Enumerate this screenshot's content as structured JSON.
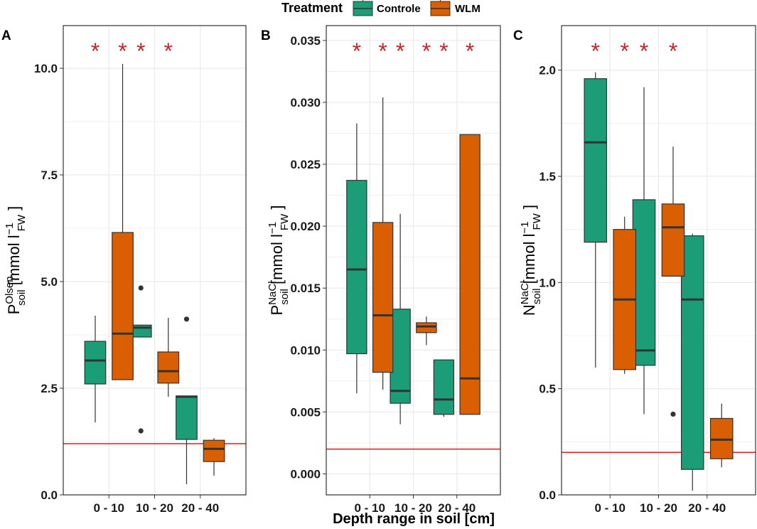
{
  "legend": {
    "title": "Treatment",
    "items": [
      {
        "label": "Controle",
        "color": "#1b9e77"
      },
      {
        "label": "WLM",
        "color": "#d95f02"
      }
    ]
  },
  "x_axis_title": "Depth range in soil [cm]",
  "colors": {
    "controle": "#1b9e77",
    "wlm": "#d95f02",
    "reference_line": "#e31a1c",
    "star": "#c0282a",
    "grid": "#ebebeb",
    "box_stroke": "#333333"
  },
  "chart_data": [
    {
      "type": "box",
      "panel": "A",
      "ylabel": {
        "main": "P",
        "sup": "Olsen",
        "sub": "soil",
        "unit_open": " [mmol l",
        "unit_sup": "−1",
        "unit_sub": "FW",
        "unit_close": " ]"
      },
      "categories": [
        "0 - 10",
        "10 - 20",
        "20 - 40"
      ],
      "ylim": [
        0,
        11.0
      ],
      "yticks": [
        0.0,
        2.5,
        5.0,
        7.5,
        10.0
      ],
      "ytick_labels": [
        "0.0",
        "2.5",
        "5.0",
        "7.5",
        "10.0"
      ],
      "reference_line": 1.2,
      "significance": [
        "*",
        "*",
        "*",
        "*",
        ""
      ],
      "significant_categories": [
        true,
        true,
        false
      ],
      "series": [
        {
          "name": "Controle",
          "boxes": [
            {
              "min": 1.7,
              "q1": 2.6,
              "median": 3.15,
              "q3": 3.6,
              "max": 4.2,
              "outliers": []
            },
            {
              "min": 3.7,
              "q1": 3.7,
              "median": 3.92,
              "q3": 3.98,
              "max": 3.98,
              "outliers": [
                4.85,
                1.5
              ]
            },
            {
              "min": 0.25,
              "q1": 1.3,
              "median": 2.3,
              "q3": 2.32,
              "max": 2.32,
              "outliers": [
                4.12
              ]
            }
          ]
        },
        {
          "name": "WLM",
          "boxes": [
            {
              "min": 2.7,
              "q1": 2.7,
              "median": 3.78,
              "q3": 6.15,
              "max": 10.1,
              "outliers": []
            },
            {
              "min": 2.3,
              "q1": 2.62,
              "median": 2.9,
              "q3": 3.35,
              "max": 4.15,
              "outliers": []
            },
            {
              "min": 0.45,
              "q1": 0.78,
              "median": 1.08,
              "q3": 1.28,
              "max": 1.33,
              "outliers": []
            }
          ]
        }
      ]
    },
    {
      "type": "box",
      "panel": "B",
      "ylabel": {
        "main": "P",
        "sup": "NaCl",
        "sub": "soil",
        "unit_open": " [mmol l",
        "unit_sup": "−1",
        "unit_sub": "FW",
        "unit_close": " ]"
      },
      "categories": [
        "0 - 10",
        "10 - 20",
        "20 - 40"
      ],
      "ylim": [
        -0.0017,
        0.0362
      ],
      "yticks": [
        0.0,
        0.005,
        0.01,
        0.015,
        0.02,
        0.025,
        0.03,
        0.035
      ],
      "ytick_labels": [
        "0.000",
        "0.005",
        "0.010",
        "0.015",
        "0.020",
        "0.025",
        "0.030",
        "0.035"
      ],
      "reference_line": 0.002,
      "significance": [
        "*",
        "*",
        "*",
        "*",
        "*",
        "*"
      ],
      "significant_categories": [
        true,
        true,
        true
      ],
      "series": [
        {
          "name": "Controle",
          "boxes": [
            {
              "min": 0.0065,
              "q1": 0.0097,
              "median": 0.0165,
              "q3": 0.0237,
              "max": 0.0283,
              "outliers": []
            },
            {
              "min": 0.004,
              "q1": 0.0057,
              "median": 0.0067,
              "q3": 0.0133,
              "max": 0.021,
              "outliers": []
            },
            {
              "min": 0.0046,
              "q1": 0.0048,
              "median": 0.006,
              "q3": 0.0092,
              "max": 0.0092,
              "outliers": []
            }
          ]
        },
        {
          "name": "WLM",
          "boxes": [
            {
              "min": 0.0068,
              "q1": 0.0082,
              "median": 0.0128,
              "q3": 0.0203,
              "max": 0.0304,
              "outliers": []
            },
            {
              "min": 0.0104,
              "q1": 0.0114,
              "median": 0.0119,
              "q3": 0.0122,
              "max": 0.0127,
              "outliers": []
            },
            {
              "min": 0.0048,
              "q1": 0.0048,
              "median": 0.0077,
              "q3": 0.0274,
              "max": 0.0274,
              "outliers": []
            }
          ]
        }
      ]
    },
    {
      "type": "box",
      "panel": "C",
      "ylabel": {
        "main": "N",
        "sup": "NaCl",
        "sub": "soil",
        "unit_open": " [mmol l",
        "unit_sup": "−1",
        "unit_sub": "FW",
        "unit_close": " ]"
      },
      "categories": [
        "0 - 10",
        "10 - 20",
        "20 - 40"
      ],
      "ylim": [
        0,
        2.21
      ],
      "yticks": [
        0.0,
        0.5,
        1.0,
        1.5,
        2.0
      ],
      "ytick_labels": [
        "0.0",
        "0.5",
        "1.0",
        "1.5",
        "2.0"
      ],
      "reference_line": 0.2,
      "significance": [
        "*",
        "*",
        "*",
        "*",
        ""
      ],
      "significant_categories": [
        true,
        true,
        false
      ],
      "series": [
        {
          "name": "Controle",
          "boxes": [
            {
              "min": 0.6,
              "q1": 1.19,
              "median": 1.66,
              "q3": 1.96,
              "max": 1.99,
              "outliers": []
            },
            {
              "min": 0.38,
              "q1": 0.61,
              "median": 0.68,
              "q3": 1.39,
              "max": 1.92,
              "outliers": []
            },
            {
              "min": 0.02,
              "q1": 0.12,
              "median": 0.92,
              "q3": 1.22,
              "max": 1.23,
              "outliers": []
            }
          ]
        },
        {
          "name": "WLM",
          "boxes": [
            {
              "min": 0.57,
              "q1": 0.59,
              "median": 0.92,
              "q3": 1.25,
              "max": 1.31,
              "outliers": []
            },
            {
              "min": 1.03,
              "q1": 1.03,
              "median": 1.26,
              "q3": 1.37,
              "max": 1.64,
              "outliers": [
                0.38
              ]
            },
            {
              "min": 0.13,
              "q1": 0.17,
              "median": 0.26,
              "q3": 0.36,
              "max": 0.43,
              "outliers": []
            }
          ]
        }
      ]
    }
  ]
}
